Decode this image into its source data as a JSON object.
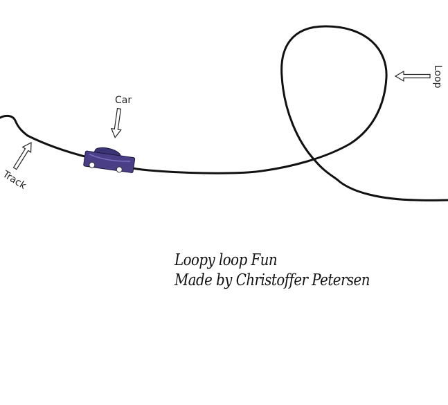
{
  "labels": {
    "car": "Car",
    "track": "Track",
    "loop": "Loop"
  },
  "credits": {
    "title": "Loopy loop Fun",
    "author": "Made by Christoffer Petersen"
  },
  "colors": {
    "track": "#111111",
    "car_body": "#4a3f86",
    "background": "#ffffff"
  },
  "icons": {
    "car": "car-icon",
    "arrows": "outline-arrow-icon"
  }
}
